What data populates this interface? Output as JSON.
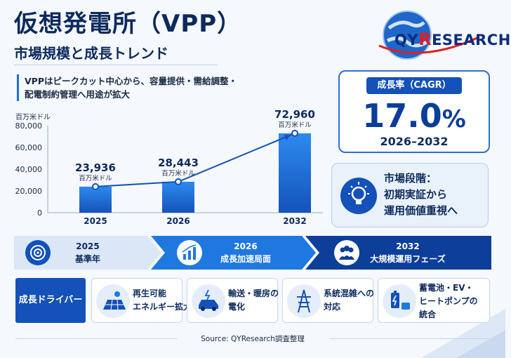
{
  "header": {
    "title": "仮想発電所（VPP）",
    "subtitle": "市場規模と成長トレンド"
  },
  "logo": {
    "q": "Q",
    "y": "Y",
    "r": "R",
    "rest": "ESEARCH"
  },
  "description": "VPPはピークカット中心から、容量提供・需給調整・配電制約管理へ用途が拡大",
  "chart_data": {
    "type": "bar",
    "unit_label": "百万米ドル",
    "categories": [
      "2025",
      "2026",
      "2032"
    ],
    "values": [
      23936,
      28443,
      72960
    ],
    "value_labels": [
      "23,936",
      "28,443",
      "72,960"
    ],
    "ylim": [
      0,
      80000
    ],
    "yticks": [
      0,
      20000,
      40000,
      60000,
      80000
    ],
    "ytick_labels": [
      "0",
      "20,000",
      "40,000",
      "60,000",
      "80,000"
    ],
    "grid": false,
    "trend_line": true
  },
  "cagr": {
    "label": "成長率（CAGR）",
    "value": "17.0",
    "pct": "%",
    "period": "2026–2032"
  },
  "stage": {
    "line1": "市場段階：",
    "line2": "初期実証から",
    "line3": "運用価値重視へ"
  },
  "phases": [
    {
      "year": "2025",
      "label": "基準年",
      "icon": "target-icon"
    },
    {
      "year": "2026",
      "label": "成長加速局面",
      "icon": "growth-chart-icon"
    },
    {
      "year": "2032",
      "label": "大規模運用フェーズ",
      "icon": "people-icon"
    }
  ],
  "drivers": {
    "label": "成長ドライバー",
    "items": [
      {
        "line1": "再生可能",
        "line2": "エネルギー拡大",
        "icon": "solar-panel-icon"
      },
      {
        "line1": "輸送・暖房の",
        "line2": "電化",
        "icon": "ev-car-icon"
      },
      {
        "line1": "系統混雑への",
        "line2": "対応",
        "icon": "power-tower-icon"
      },
      {
        "line1": "蓄電池・EV・",
        "line2": "ヒートポンプの",
        "line3": "統合",
        "icon": "battery-icon"
      }
    ]
  },
  "source": "Source: QYResearch調査整理",
  "colors": {
    "primary": "#1451b8",
    "dark": "#0d2a5c",
    "bar": "#1f78e0"
  }
}
